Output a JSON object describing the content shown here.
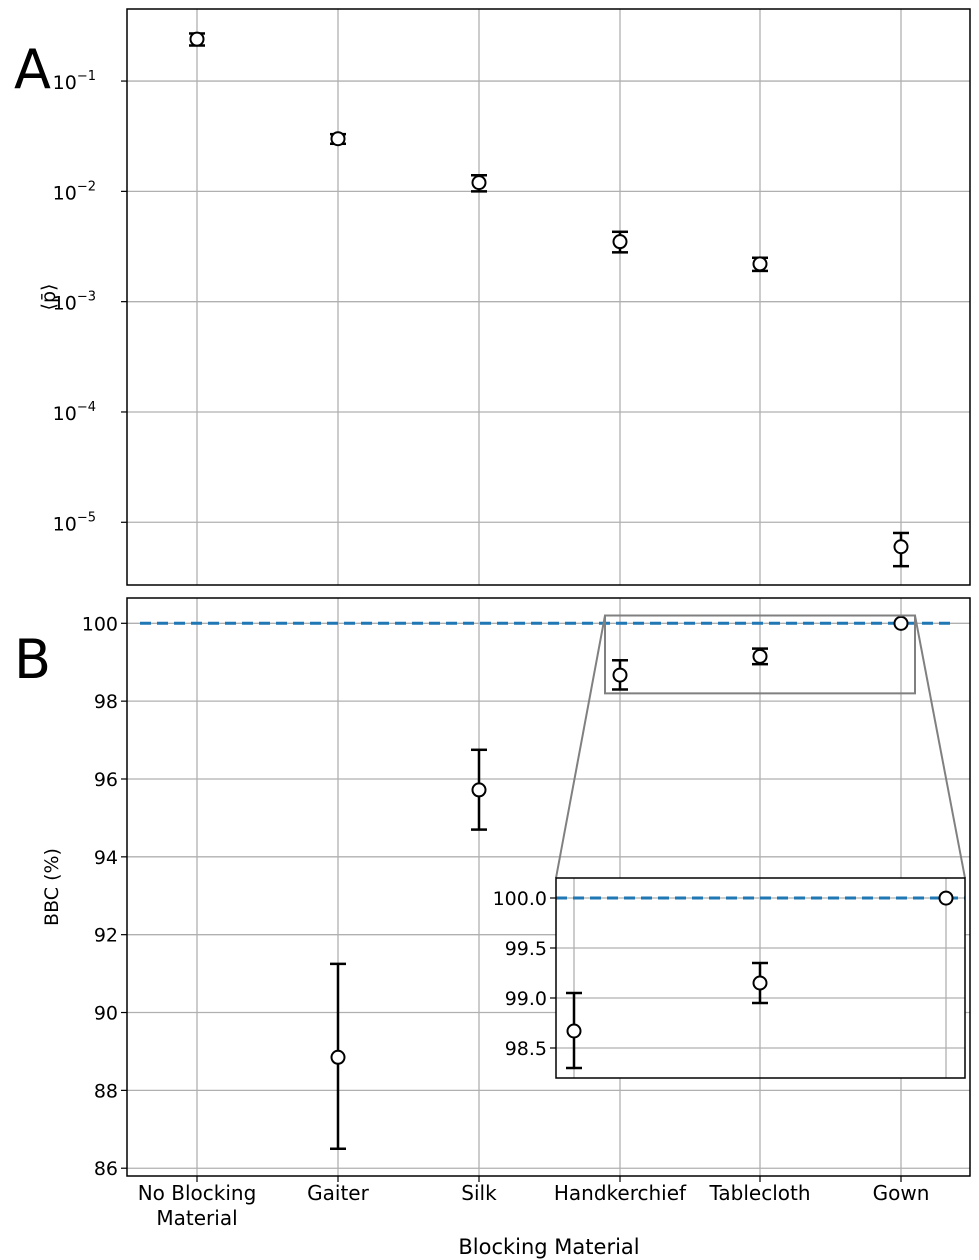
{
  "panel_labels": {
    "a": "A",
    "b": "B"
  },
  "xlabel": "Blocking Material",
  "colors": {
    "reference_line": "#1f77b4",
    "grid": "#b0b0b0",
    "inset_frame": "#808080",
    "marker_edge": "#000000",
    "marker_face": "#ffffff"
  },
  "chart_data": [
    {
      "panel": "A",
      "type": "scatter",
      "ylabel": "⟨p̄⟩",
      "yscale": "log",
      "ylim": [
        2.7e-06,
        0.45
      ],
      "yticks": [
        {
          "value": 0.1,
          "base": "10",
          "exp": "−1"
        },
        {
          "value": 0.01,
          "base": "10",
          "exp": "−2"
        },
        {
          "value": 0.001,
          "base": "10",
          "exp": "−3"
        },
        {
          "value": 0.0001,
          "base": "10",
          "exp": "−4"
        },
        {
          "value": 1e-05,
          "base": "10",
          "exp": "−5"
        }
      ],
      "grid": true,
      "categories": [
        "No Blocking Material",
        "Gaiter",
        "Silk",
        "Handkerchief",
        "Tablecloth",
        "Gown"
      ],
      "values": [
        0.24,
        0.03,
        0.012,
        0.0035,
        0.0022,
        6e-06
      ],
      "err_low": [
        0.21,
        0.027,
        0.01,
        0.0028,
        0.0019,
        4e-06
      ],
      "err_high": [
        0.27,
        0.033,
        0.014,
        0.0043,
        0.0025,
        8e-06
      ]
    },
    {
      "panel": "B",
      "type": "scatter",
      "ylabel": "BBC (%)",
      "ylim": [
        85.8,
        100.65
      ],
      "yticks": [
        "86",
        "88",
        "90",
        "92",
        "94",
        "96",
        "98",
        "100"
      ],
      "grid": true,
      "reference_line": 100,
      "categories": [
        "No Blocking Material",
        "Gaiter",
        "Silk",
        "Handkerchief",
        "Tablecloth",
        "Gown"
      ],
      "xtick_labels": [
        [
          "No Blocking",
          "Material"
        ],
        [
          "Gaiter"
        ],
        [
          "Silk"
        ],
        [
          "Handkerchief"
        ],
        [
          "Tablecloth"
        ],
        [
          "Gown"
        ]
      ],
      "values": [
        null,
        88.85,
        95.72,
        98.67,
        99.15,
        99.999
      ],
      "err_low": [
        null,
        86.5,
        94.7,
        98.3,
        98.95,
        99.999
      ],
      "err_high": [
        null,
        91.25,
        96.75,
        99.05,
        99.35,
        99.999
      ],
      "inset": {
        "xlim": [
          "Handkerchief",
          "Gown"
        ],
        "ylim": [
          98.2,
          100.2
        ],
        "yticks": [
          "98.5",
          "99.0",
          "99.5",
          "100.0"
        ]
      }
    }
  ]
}
